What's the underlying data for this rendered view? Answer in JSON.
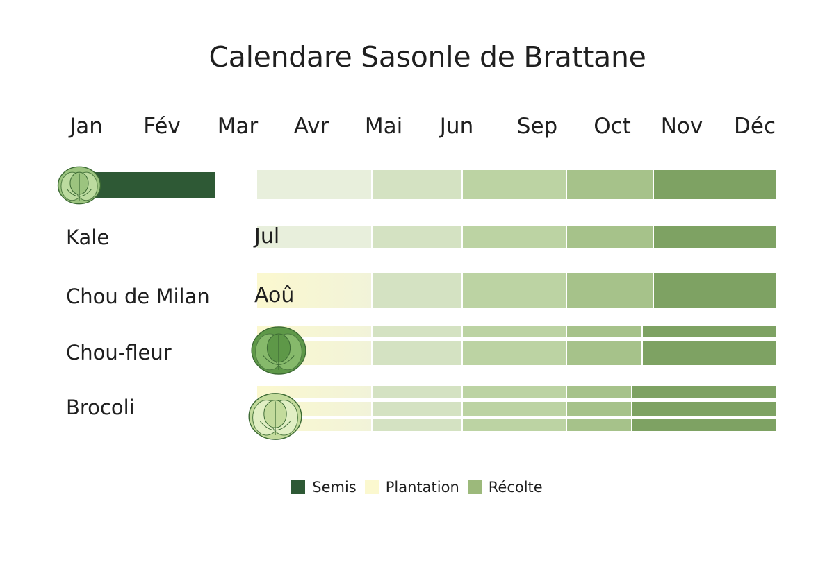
{
  "chart_data": {
    "type": "gantt",
    "title": "Calendare Sasonle de Brattane",
    "months": [
      "Jan",
      "Fév",
      "Mar",
      "Avr",
      "Mai",
      "Jun",
      "Sep",
      "Oct",
      "Nov",
      "Déc"
    ],
    "inline_month_labels": [
      "Jul",
      "Aoû"
    ],
    "rows": [
      {
        "label": "",
        "icon": "cabbage-icon",
        "sowing": [
          1,
          3
        ],
        "season_bands": [
          [
            4,
            5
          ],
          [
            6,
            6
          ],
          [
            7,
            7
          ],
          [
            8,
            8
          ],
          [
            9,
            10
          ]
        ]
      },
      {
        "label": "Kale",
        "sowing": null,
        "season_bands": [
          [
            4,
            5
          ],
          [
            6,
            6
          ],
          [
            7,
            7
          ],
          [
            8,
            8
          ],
          [
            9,
            10
          ]
        ]
      },
      {
        "label": "Chou de Milan",
        "sowing": null,
        "season_bands": [
          [
            4,
            5
          ],
          [
            6,
            6
          ],
          [
            7,
            7
          ],
          [
            8,
            8
          ],
          [
            9,
            10
          ]
        ]
      },
      {
        "label": "Chou-fleur",
        "icon": "cabbage-icon",
        "sowing": null,
        "season_bands": [
          [
            4,
            5
          ],
          [
            6,
            6
          ],
          [
            7,
            7
          ],
          [
            8,
            8
          ],
          [
            9,
            10
          ]
        ]
      },
      {
        "label": "Brocoli",
        "icon": "cabbage-icon",
        "sowing": null,
        "season_bands": [
          [
            4,
            5
          ],
          [
            6,
            6
          ],
          [
            7,
            7
          ],
          [
            8,
            8
          ],
          [
            9,
            10
          ]
        ]
      }
    ],
    "legend": [
      {
        "name": "Semis",
        "color": "#2e5935"
      },
      {
        "name": "Plantation",
        "color": "#fbf8cf"
      },
      {
        "name": "Récolte",
        "color": "#9cb97b"
      }
    ]
  },
  "colors": {
    "sowing": "#2e5935",
    "gradient": [
      "#e8efdc",
      "#d4e2c2",
      "#bcd3a3",
      "#a6c28a",
      "#7ea263"
    ],
    "planting_tint": "#fbf8cf"
  }
}
